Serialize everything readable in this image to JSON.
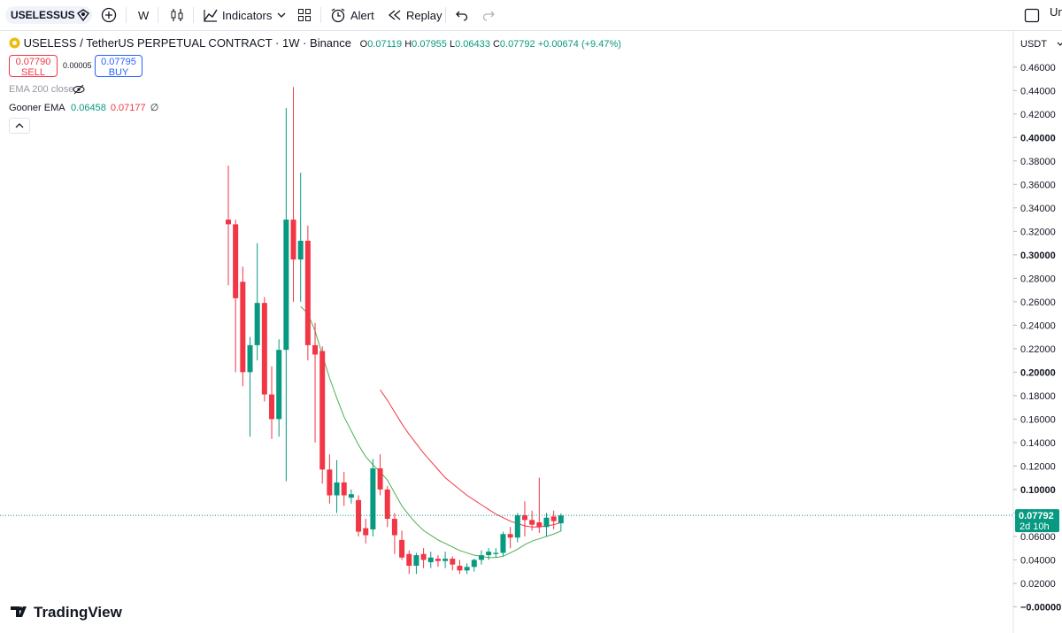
{
  "toolbar": {
    "symbol": "USELESSUSDT",
    "interval": "W",
    "indicators": "Indicators",
    "alert": "Alert",
    "replay": "Replay",
    "right": "Un"
  },
  "legend": {
    "title": "USELESS / TetherUS PERPETUAL CONTRACT · 1W · Binance",
    "ohlc_labels": [
      "O",
      "H",
      "L",
      "C"
    ],
    "change": "+0.00674 (+9.47%)",
    "sell_price": "0.07790",
    "sell": "SELL",
    "spread": "0.00005",
    "buy_price": "0.07795",
    "buy": "BUY",
    "ema200": "EMA 200 close",
    "gooner": "Gooner EMA",
    "gooner_extra": "∅"
  },
  "currency": "USDT",
  "brand": "TradingView",
  "chart_data": {
    "type": "candlestick",
    "up_color": "#089981",
    "down_color": "#f23645",
    "grid": false,
    "open": [
      0.33,
      0.326,
      0.277,
      0.2,
      0.223,
      0.259,
      0.181,
      0.16,
      0.219,
      0.33,
      0.296,
      0.312,
      0.223,
      0.218,
      0.117,
      0.095,
      0.106,
      0.093,
      0.091,
      0.067,
      0.066,
      0.118,
      0.1,
      0.075,
      0.057,
      0.045,
      0.035,
      0.045,
      0.038,
      0.041,
      0.039,
      0.041,
      0.035,
      0.031,
      0.034,
      0.04,
      0.044,
      0.045,
      0.046,
      0.062,
      0.059,
      0.078,
      0.074,
      0.072,
      0.068,
      0.077,
      0.07119
    ],
    "high": [
      0.376,
      0.33,
      0.29,
      0.23,
      0.31,
      0.264,
      0.205,
      0.228,
      0.425,
      0.443,
      0.37,
      0.325,
      0.242,
      0.222,
      0.13,
      0.125,
      0.115,
      0.1,
      0.095,
      0.075,
      0.126,
      0.13,
      0.103,
      0.08,
      0.065,
      0.048,
      0.046,
      0.05,
      0.047,
      0.044,
      0.047,
      0.043,
      0.04,
      0.037,
      0.041,
      0.048,
      0.05,
      0.05,
      0.064,
      0.068,
      0.08,
      0.09,
      0.082,
      0.11,
      0.08,
      0.082,
      0.07955
    ],
    "low": [
      0.274,
      0.2,
      0.188,
      0.145,
      0.21,
      0.175,
      0.143,
      0.145,
      0.107,
      0.26,
      0.26,
      0.21,
      0.14,
      0.105,
      0.088,
      0.08,
      0.086,
      0.088,
      0.06,
      0.054,
      0.06,
      0.095,
      0.068,
      0.045,
      0.04,
      0.028,
      0.028,
      0.033,
      0.033,
      0.034,
      0.033,
      0.031,
      0.028,
      0.028,
      0.03,
      0.036,
      0.04,
      0.042,
      0.043,
      0.05,
      0.055,
      0.06,
      0.065,
      0.063,
      0.06,
      0.066,
      0.06433
    ],
    "close": [
      0.326,
      0.263,
      0.2,
      0.223,
      0.259,
      0.181,
      0.16,
      0.219,
      0.33,
      0.296,
      0.312,
      0.223,
      0.215,
      0.117,
      0.095,
      0.106,
      0.095,
      0.096,
      0.064,
      0.061,
      0.118,
      0.1,
      0.075,
      0.061,
      0.042,
      0.035,
      0.044,
      0.04,
      0.042,
      0.039,
      0.041,
      0.036,
      0.031,
      0.034,
      0.04,
      0.044,
      0.047,
      0.046,
      0.062,
      0.059,
      0.078,
      0.074,
      0.07,
      0.068,
      0.076,
      0.073,
      0.07792
    ],
    "series": [
      {
        "color": "#4caf50",
        "values": [
          null,
          null,
          null,
          null,
          null,
          null,
          null,
          null,
          null,
          null,
          0.256,
          0.25,
          0.235,
          0.215,
          0.195,
          0.178,
          0.162,
          0.15,
          0.138,
          0.128,
          0.121,
          0.115,
          0.108,
          0.097,
          0.086,
          0.078,
          0.071,
          0.065,
          0.061,
          0.057,
          0.054,
          0.051,
          0.048,
          0.046,
          0.044,
          0.043,
          0.042,
          0.042,
          0.043,
          0.046,
          0.049,
          0.053,
          0.056,
          0.058,
          0.06,
          0.062,
          0.06458
        ]
      },
      {
        "color": "#f23645",
        "values": [
          null,
          null,
          null,
          null,
          null,
          null,
          null,
          null,
          null,
          null,
          null,
          null,
          null,
          null,
          null,
          null,
          null,
          null,
          null,
          null,
          null,
          0.185,
          0.176,
          0.166,
          0.156,
          0.147,
          0.139,
          0.131,
          0.124,
          0.117,
          0.11,
          0.105,
          0.1,
          0.095,
          0.091,
          0.087,
          0.083,
          0.079,
          0.076,
          0.073,
          0.071,
          0.069,
          0.068,
          0.068,
          0.069,
          0.07,
          0.07177
        ]
      }
    ],
    "countdown": "2d 10h",
    "ylim": [
      -0.011,
      0.487
    ],
    "yticks": [
      {
        "value": 0,
        "label": "−0.00000"
      },
      {
        "value": 0.02,
        "label": "0.02000"
      },
      {
        "value": 0.04,
        "label": "0.04000"
      },
      {
        "value": 0.06,
        "label": "0.06000"
      },
      {
        "value": 0.08,
        "label": "0.08000"
      },
      {
        "value": 0.1,
        "label": "0.10000"
      },
      {
        "value": 0.12,
        "label": "0.12000"
      },
      {
        "value": 0.14,
        "label": "0.14000"
      },
      {
        "value": 0.16,
        "label": "0.16000"
      },
      {
        "value": 0.18,
        "label": "0.18000"
      },
      {
        "value": 0.2,
        "label": "0.20000"
      },
      {
        "value": 0.22,
        "label": "0.22000"
      },
      {
        "value": 0.24,
        "label": "0.24000"
      },
      {
        "value": 0.26,
        "label": "0.26000"
      },
      {
        "value": 0.28,
        "label": "0.28000"
      },
      {
        "value": 0.3,
        "label": "0.30000"
      },
      {
        "value": 0.32,
        "label": "0.32000"
      },
      {
        "value": 0.34,
        "label": "0.34000"
      },
      {
        "value": 0.36,
        "label": "0.36000"
      },
      {
        "value": 0.38,
        "label": "0.38000"
      },
      {
        "value": 0.4,
        "label": "0.40000"
      },
      {
        "value": 0.42,
        "label": "0.42000"
      },
      {
        "value": 0.44,
        "label": "0.44000"
      },
      {
        "value": 0.46,
        "label": "0.46000"
      }
    ]
  }
}
